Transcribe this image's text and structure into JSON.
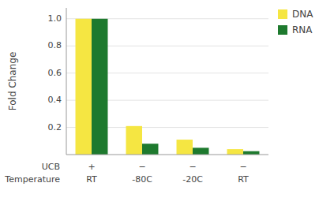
{
  "chart_data": {
    "type": "bar",
    "categories": [
      [
        "+",
        "RT"
      ],
      [
        "−",
        "-80C"
      ],
      [
        "−",
        "-20C"
      ],
      [
        "−",
        "RT"
      ]
    ],
    "annotations": [
      "UCB",
      "Temperature"
    ],
    "series": [
      {
        "name": "DNA",
        "color": "#F5E642",
        "values": [
          1.0,
          0.21,
          0.11,
          0.04
        ]
      },
      {
        "name": "RNA",
        "color": "#1E7A2E",
        "values": [
          1.0,
          0.08,
          0.05,
          0.025
        ]
      }
    ],
    "y_label": "Fold Change",
    "ylim": [
      0,
      1.08
    ],
    "yticks": [
      0.2,
      0.4,
      0.6,
      0.8,
      {
        "value": 1.0,
        "label": "1.0"
      }
    ],
    "grid": true,
    "legend": "upper right"
  }
}
